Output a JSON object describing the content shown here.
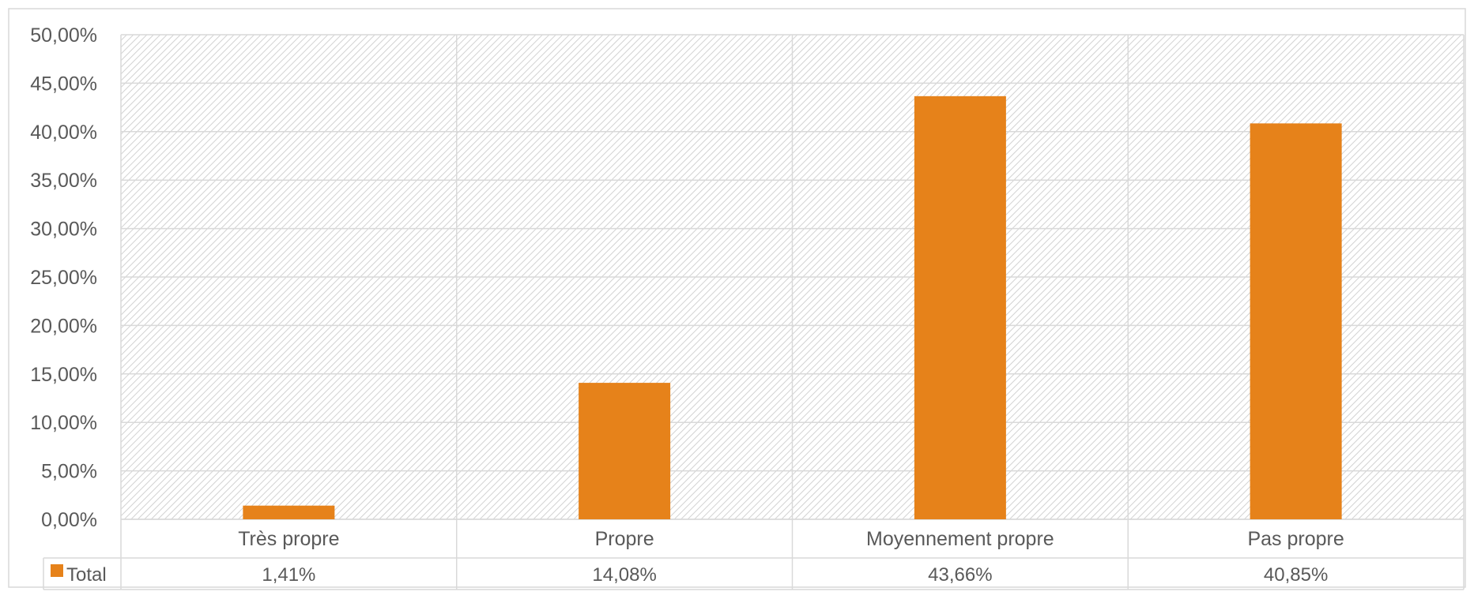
{
  "chart_data": {
    "type": "bar",
    "categories": [
      "Très propre",
      "Propre",
      "Moyennement propre",
      "Pas propre"
    ],
    "series": [
      {
        "name": "Total",
        "values": [
          1.41,
          14.08,
          43.66,
          40.85
        ]
      }
    ],
    "value_labels": [
      "1,41%",
      "14,08%",
      "43,66%",
      "40,85%"
    ],
    "y_tick_values": [
      0,
      5,
      10,
      15,
      20,
      25,
      30,
      35,
      40,
      45,
      50
    ],
    "y_tick_labels": [
      "0,00%",
      "5,00%",
      "10,00%",
      "15,00%",
      "20,00%",
      "25,00%",
      "30,00%",
      "35,00%",
      "40,00%",
      "45,00%",
      "50,00%"
    ],
    "ylim": [
      0,
      50
    ],
    "grid": true,
    "data_table": true,
    "legend_key_in_table": true,
    "bar_color": "#E6821A",
    "plot_background": "hatched light gray"
  }
}
